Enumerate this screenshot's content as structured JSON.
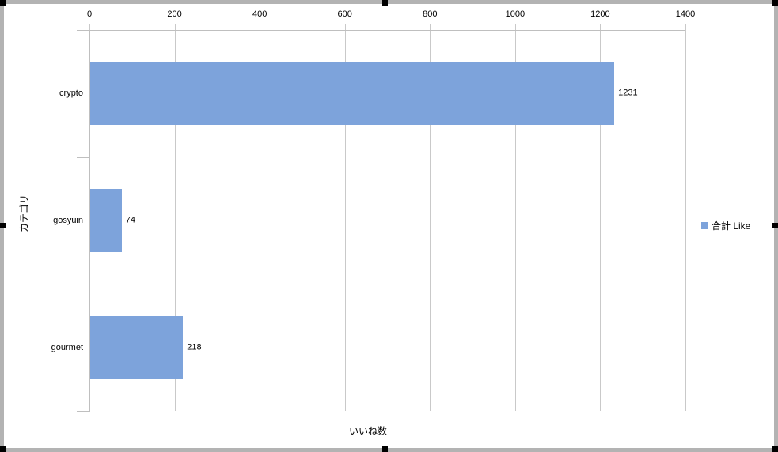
{
  "chart_data": {
    "type": "bar",
    "orientation": "horizontal",
    "title": "",
    "categories": [
      "crypto",
      "gosyuin",
      "gourmet"
    ],
    "series": [
      {
        "name": "合計 Like",
        "values": [
          1231,
          74,
          218
        ],
        "color": "#7DA3DB"
      }
    ],
    "data_labels": [
      "1231",
      "74",
      "218"
    ],
    "xlabel": "いいね数",
    "ylabel": "カテゴリ",
    "xlim": [
      0,
      1400
    ],
    "x_ticks": [
      "0",
      "200",
      "400",
      "600",
      "800",
      "1000",
      "1200",
      "1400"
    ],
    "x_tick_values": [
      0,
      200,
      400,
      600,
      800,
      1000,
      1200,
      1400
    ],
    "legend": {
      "entries": [
        "合計 Like"
      ],
      "position": "right"
    },
    "gridlines": true
  },
  "colors": {
    "bar": "#7DA3DB",
    "gridline": "#C9C9C9",
    "axis": "#BFBFBF",
    "chart_border": "#B3B3B3",
    "selection_handle": "#000000",
    "background": "#FFFFFF",
    "text": "#000000"
  }
}
